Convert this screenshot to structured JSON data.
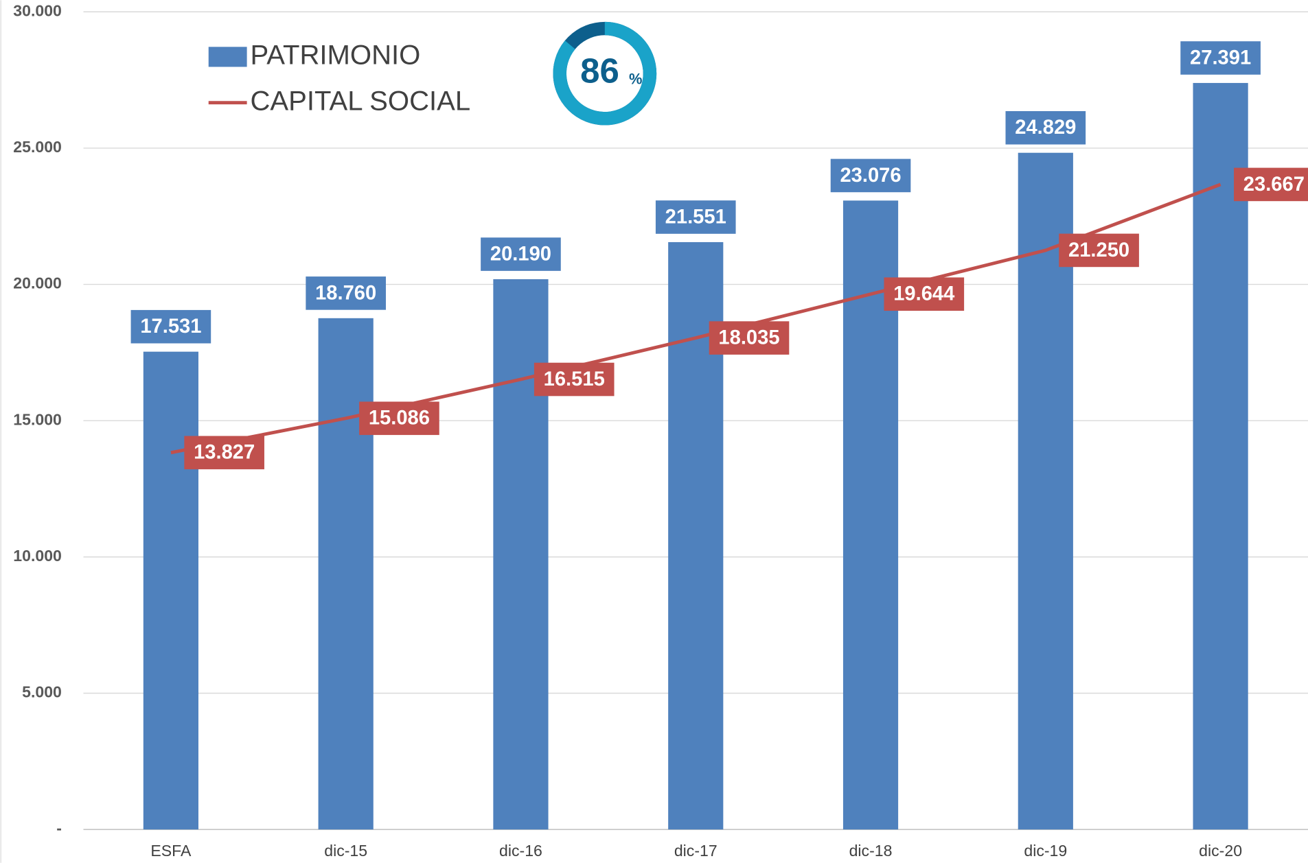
{
  "chart_data": {
    "type": "bar",
    "categories": [
      "ESFA",
      "dic-15",
      "dic-16",
      "dic-17",
      "dic-18",
      "dic-19",
      "dic-20"
    ],
    "series": [
      {
        "name": "PATRIMONIO",
        "type": "bar",
        "color": "#4f81bd",
        "values": [
          17531,
          18760,
          20190,
          21551,
          23076,
          24829,
          27391
        ],
        "value_labels": [
          "17.531",
          "18.760",
          "20.190",
          "21.551",
          "23.076",
          "24.829",
          "27.391"
        ]
      },
      {
        "name": "CAPITAL SOCIAL",
        "type": "line",
        "color": "#c0504d",
        "values": [
          13827,
          15086,
          16515,
          18035,
          19644,
          21250,
          23667
        ],
        "value_labels": [
          "13.827",
          "15.086",
          "16.515",
          "18.035",
          "19.644",
          "21.250",
          "23.667"
        ]
      }
    ],
    "ylim": [
      0,
      30000
    ],
    "yticks": [
      {
        "value": 0,
        "label": "-"
      },
      {
        "value": 5000,
        "label": "5.000"
      },
      {
        "value": 10000,
        "label": "10.000"
      },
      {
        "value": 15000,
        "label": "15.000"
      },
      {
        "value": 20000,
        "label": "20.000"
      },
      {
        "value": 25000,
        "label": "25.000"
      },
      {
        "value": 30000,
        "label": "30.000"
      }
    ],
    "grid": true,
    "donut": {
      "value": 86,
      "unit": "%"
    }
  }
}
